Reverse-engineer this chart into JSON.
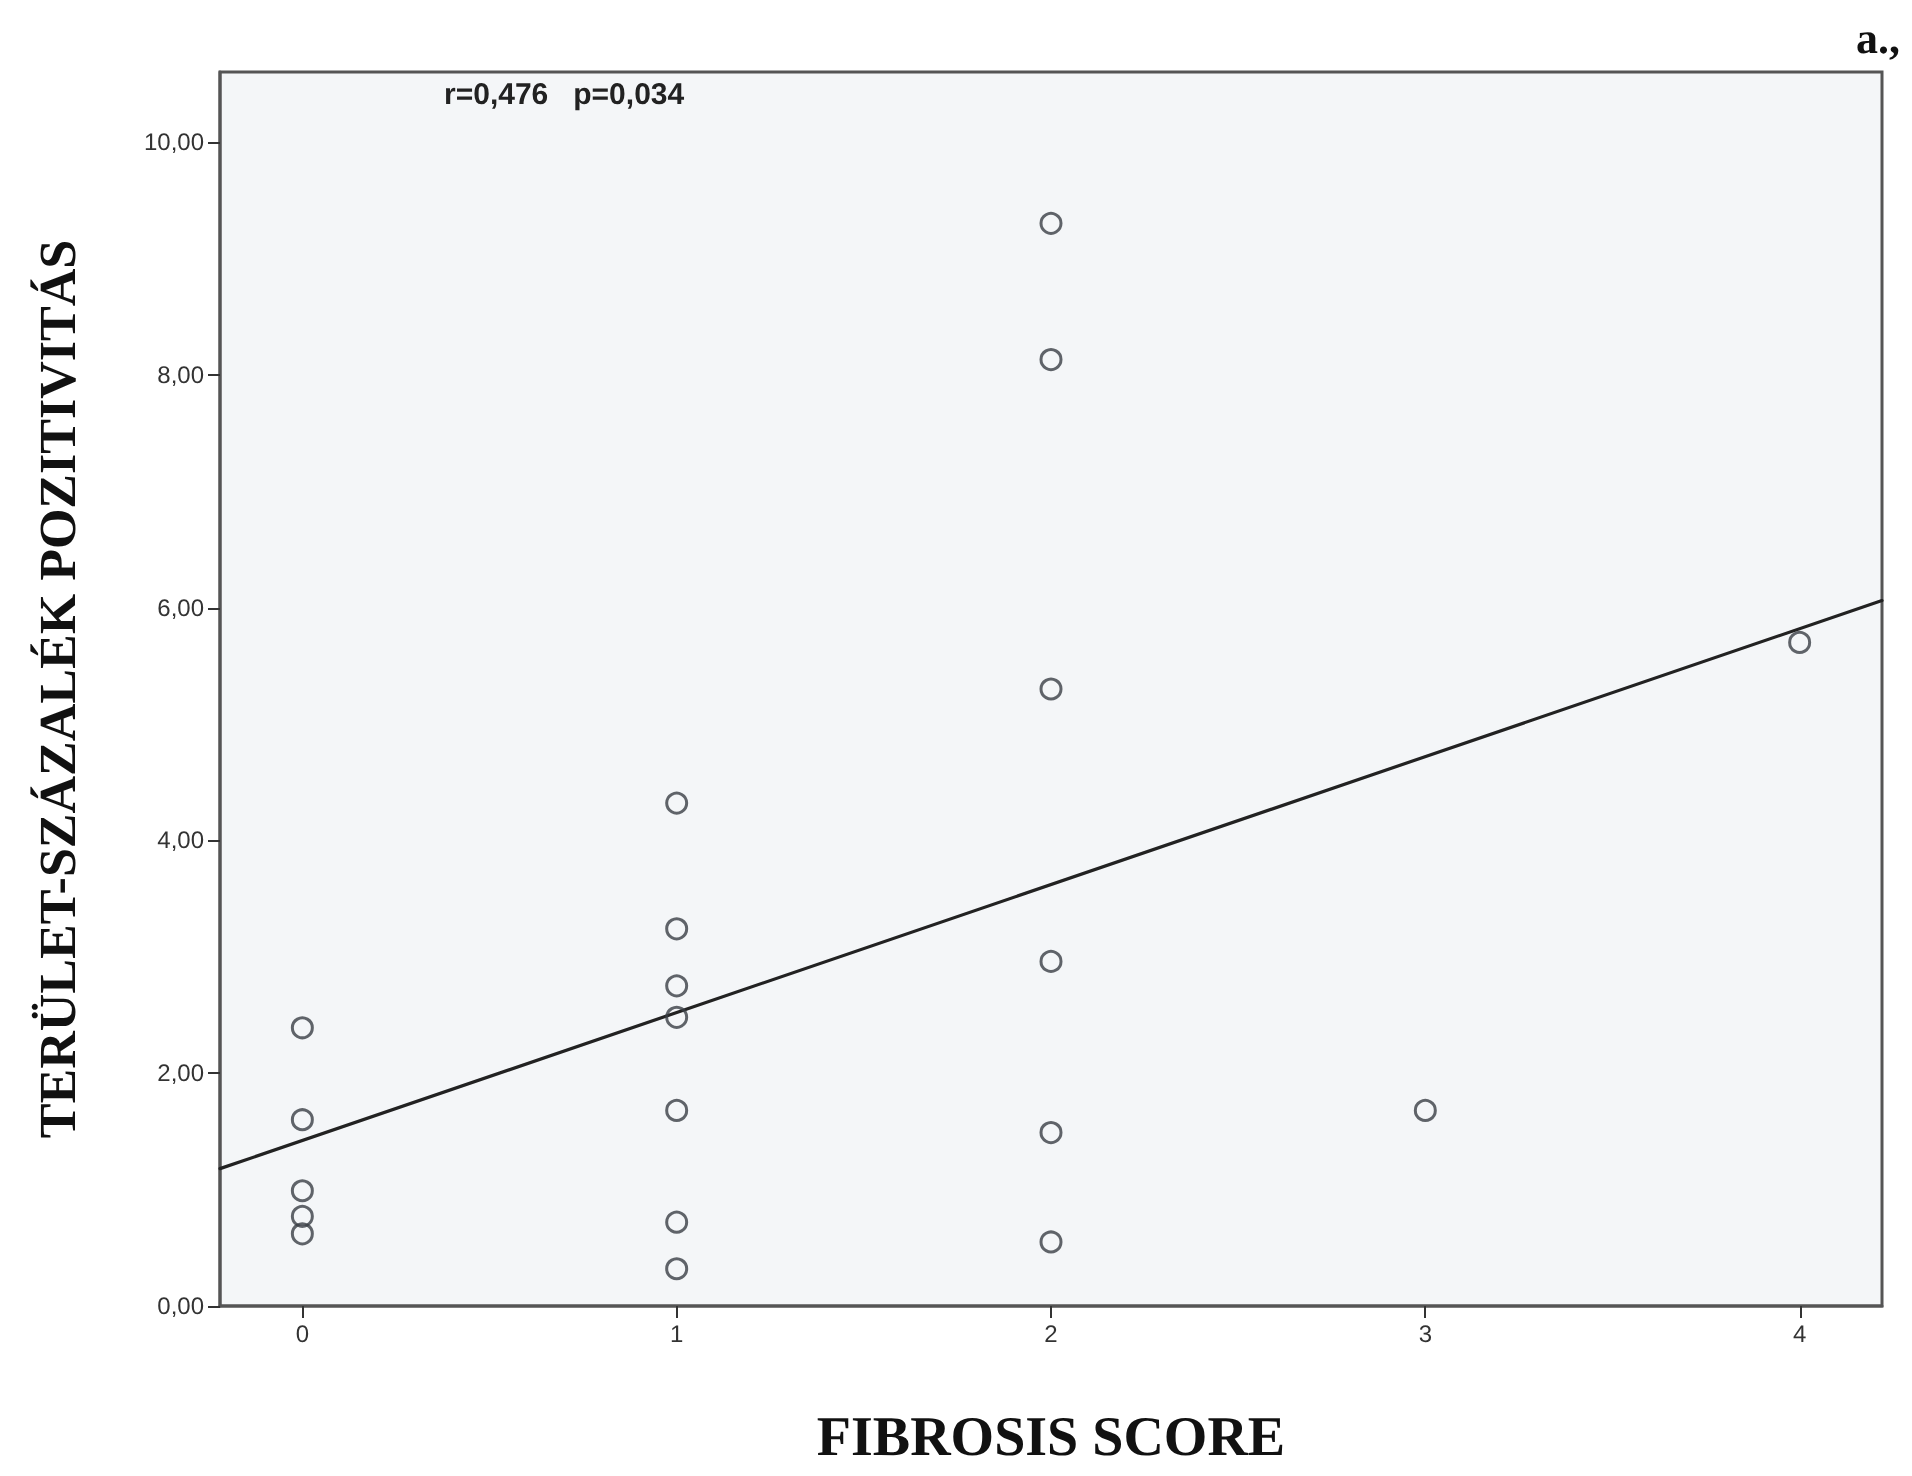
{
  "chart_data": {
    "type": "scatter",
    "xlabel": "FIBROSIS SCORE",
    "ylabel": "TERÜLET-SZÁZALÉK POZITIVITÁS",
    "annotations": [
      "r=0,476   p=0,034",
      "a.,"
    ],
    "xlim": [
      -0.22,
      4.22
    ],
    "xticks": [
      0,
      1,
      2,
      3,
      4
    ],
    "ylim": [
      0,
      10.6
    ],
    "yticks": [
      {
        "value": 0,
        "label": "0,00"
      },
      {
        "value": 2,
        "label": "2,00"
      },
      {
        "value": 4,
        "label": "4,00"
      },
      {
        "value": 6,
        "label": "6,00"
      },
      {
        "value": 8,
        "label": "8,00"
      },
      {
        "value": 10,
        "label": "10,00"
      }
    ],
    "grid": false,
    "marker": "circle",
    "series": [
      {
        "color": "#3a3f45",
        "x": [
          0,
          0,
          0,
          0,
          0,
          1,
          1,
          1,
          1,
          1,
          1,
          1,
          2,
          2,
          2,
          2,
          2,
          2,
          3,
          4
        ],
        "values": [
          2.39,
          1.6,
          0.99,
          0.77,
          0.62,
          4.32,
          3.24,
          2.75,
          2.48,
          1.68,
          0.72,
          0.32,
          9.3,
          8.13,
          5.3,
          2.96,
          1.49,
          0.55,
          1.68,
          5.7
        ]
      },
      {
        "type": "line",
        "color": "#222222",
        "marker": "none",
        "line_style": "solid",
        "x": [
          -0.22,
          4.22
        ],
        "values": [
          1.18,
          6.06
        ]
      }
    ]
  }
}
